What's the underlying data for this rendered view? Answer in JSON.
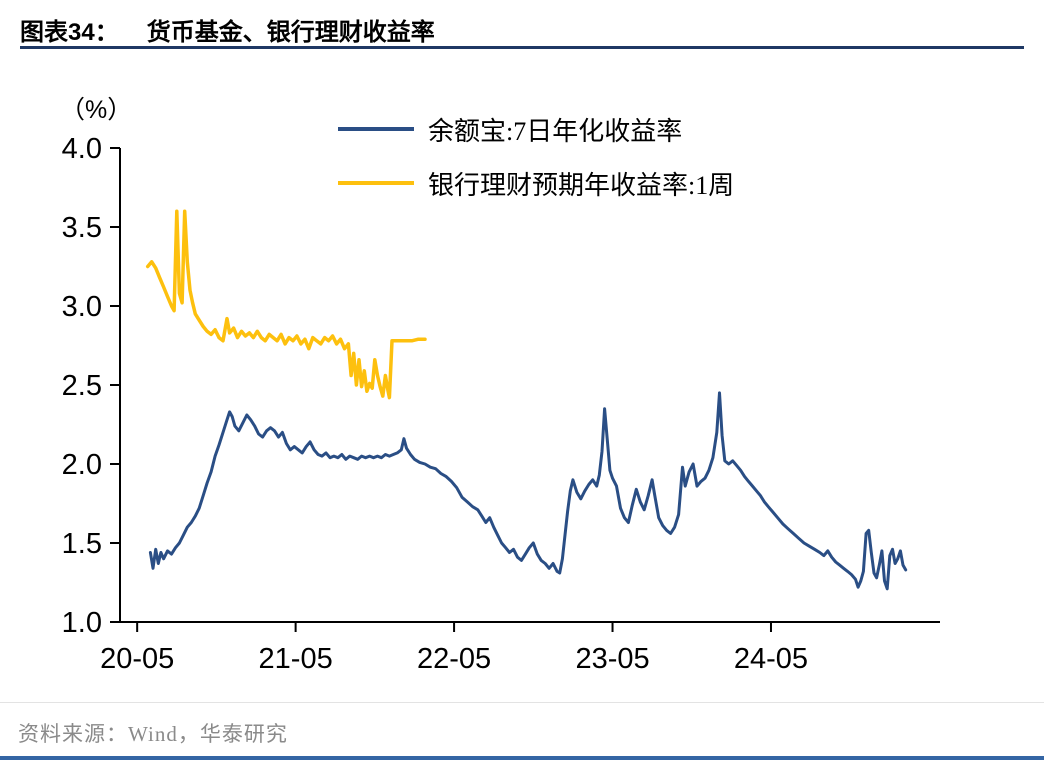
{
  "header": {
    "label": "图表34：",
    "title": "货币基金、银行理财收益率"
  },
  "footer": {
    "source": "资料来源：Wind，华泰研究"
  },
  "colors": {
    "title_rule": "#1f3864",
    "bottom_rule": "#3465a4",
    "axis": "#000000",
    "source_text": "#8a8a8a",
    "blue_series": "#2a4e85",
    "gold_series": "#fdc00e"
  },
  "chart_data": {
    "type": "line",
    "title": "货币基金、银行理财收益率",
    "unit_label": "（%）",
    "xlabel": "",
    "ylabel": "(%)",
    "grid": false,
    "legend_position": "top-center",
    "ylim": [
      1.0,
      4.0
    ],
    "yticks": [
      1.0,
      1.5,
      2.0,
      2.5,
      3.0,
      3.5,
      4.0
    ],
    "ytick_labels": [
      "1.0",
      "1.5",
      "2.0",
      "2.5",
      "3.0",
      "3.5",
      "4.0"
    ],
    "x_unit": "months since 2020-05",
    "xlim": [
      -1.3,
      60.8
    ],
    "xticks": [
      0,
      12,
      24,
      36,
      48
    ],
    "xtick_labels": [
      "20-05",
      "21-05",
      "22-05",
      "23-05",
      "24-05"
    ],
    "series": [
      {
        "name": "余额宝:7日年化收益率",
        "color": "#2a4e85",
        "points": [
          [
            1.0,
            1.44
          ],
          [
            1.2,
            1.34
          ],
          [
            1.4,
            1.46
          ],
          [
            1.6,
            1.37
          ],
          [
            1.8,
            1.44
          ],
          [
            2.0,
            1.4
          ],
          [
            2.3,
            1.45
          ],
          [
            2.6,
            1.43
          ],
          [
            2.9,
            1.47
          ],
          [
            3.2,
            1.5
          ],
          [
            3.5,
            1.55
          ],
          [
            3.8,
            1.6
          ],
          [
            4.1,
            1.63
          ],
          [
            4.4,
            1.67
          ],
          [
            4.7,
            1.72
          ],
          [
            5.0,
            1.8
          ],
          [
            5.3,
            1.88
          ],
          [
            5.6,
            1.95
          ],
          [
            5.9,
            2.05
          ],
          [
            6.2,
            2.12
          ],
          [
            6.5,
            2.2
          ],
          [
            6.8,
            2.28
          ],
          [
            7.0,
            2.33
          ],
          [
            7.2,
            2.3
          ],
          [
            7.4,
            2.24
          ],
          [
            7.7,
            2.21
          ],
          [
            8.0,
            2.26
          ],
          [
            8.3,
            2.31
          ],
          [
            8.6,
            2.28
          ],
          [
            8.9,
            2.24
          ],
          [
            9.2,
            2.19
          ],
          [
            9.5,
            2.17
          ],
          [
            9.8,
            2.21
          ],
          [
            10.1,
            2.23
          ],
          [
            10.4,
            2.21
          ],
          [
            10.7,
            2.17
          ],
          [
            11.0,
            2.2
          ],
          [
            11.3,
            2.13
          ],
          [
            11.6,
            2.09
          ],
          [
            11.9,
            2.11
          ],
          [
            12.2,
            2.09
          ],
          [
            12.5,
            2.07
          ],
          [
            12.8,
            2.11
          ],
          [
            13.1,
            2.14
          ],
          [
            13.4,
            2.09
          ],
          [
            13.7,
            2.06
          ],
          [
            14.0,
            2.05
          ],
          [
            14.3,
            2.07
          ],
          [
            14.6,
            2.04
          ],
          [
            14.9,
            2.05
          ],
          [
            15.2,
            2.04
          ],
          [
            15.5,
            2.06
          ],
          [
            15.8,
            2.03
          ],
          [
            16.1,
            2.05
          ],
          [
            16.4,
            2.04
          ],
          [
            16.7,
            2.03
          ],
          [
            17.0,
            2.05
          ],
          [
            17.3,
            2.04
          ],
          [
            17.6,
            2.05
          ],
          [
            17.9,
            2.04
          ],
          [
            18.2,
            2.05
          ],
          [
            18.5,
            2.04
          ],
          [
            18.8,
            2.06
          ],
          [
            19.1,
            2.05
          ],
          [
            19.4,
            2.06
          ],
          [
            19.7,
            2.07
          ],
          [
            20.0,
            2.09
          ],
          [
            20.2,
            2.16
          ],
          [
            20.4,
            2.1
          ],
          [
            20.7,
            2.06
          ],
          [
            21.0,
            2.03
          ],
          [
            21.4,
            2.01
          ],
          [
            21.8,
            2.0
          ],
          [
            22.2,
            1.98
          ],
          [
            22.6,
            1.97
          ],
          [
            23.0,
            1.94
          ],
          [
            23.4,
            1.92
          ],
          [
            23.8,
            1.89
          ],
          [
            24.2,
            1.85
          ],
          [
            24.6,
            1.79
          ],
          [
            25.0,
            1.76
          ],
          [
            25.4,
            1.73
          ],
          [
            25.8,
            1.71
          ],
          [
            26.1,
            1.67
          ],
          [
            26.4,
            1.63
          ],
          [
            26.7,
            1.66
          ],
          [
            27.0,
            1.6
          ],
          [
            27.3,
            1.55
          ],
          [
            27.6,
            1.5
          ],
          [
            27.9,
            1.47
          ],
          [
            28.2,
            1.44
          ],
          [
            28.5,
            1.46
          ],
          [
            28.8,
            1.41
          ],
          [
            29.1,
            1.39
          ],
          [
            29.4,
            1.43
          ],
          [
            29.7,
            1.47
          ],
          [
            30.0,
            1.5
          ],
          [
            30.3,
            1.43
          ],
          [
            30.6,
            1.39
          ],
          [
            30.9,
            1.37
          ],
          [
            31.2,
            1.34
          ],
          [
            31.5,
            1.37
          ],
          [
            31.8,
            1.32
          ],
          [
            32.0,
            1.31
          ],
          [
            32.2,
            1.4
          ],
          [
            32.4,
            1.55
          ],
          [
            32.6,
            1.7
          ],
          [
            32.8,
            1.83
          ],
          [
            33.0,
            1.9
          ],
          [
            33.3,
            1.82
          ],
          [
            33.6,
            1.78
          ],
          [
            33.9,
            1.83
          ],
          [
            34.2,
            1.87
          ],
          [
            34.5,
            1.9
          ],
          [
            34.8,
            1.86
          ],
          [
            35.0,
            1.93
          ],
          [
            35.2,
            2.08
          ],
          [
            35.4,
            2.35
          ],
          [
            35.6,
            2.16
          ],
          [
            35.8,
            1.96
          ],
          [
            36.0,
            1.91
          ],
          [
            36.3,
            1.86
          ],
          [
            36.6,
            1.72
          ],
          [
            36.9,
            1.66
          ],
          [
            37.2,
            1.63
          ],
          [
            37.5,
            1.74
          ],
          [
            37.8,
            1.84
          ],
          [
            38.1,
            1.76
          ],
          [
            38.4,
            1.71
          ],
          [
            38.7,
            1.8
          ],
          [
            39.0,
            1.9
          ],
          [
            39.2,
            1.8
          ],
          [
            39.5,
            1.66
          ],
          [
            39.8,
            1.61
          ],
          [
            40.1,
            1.58
          ],
          [
            40.4,
            1.56
          ],
          [
            40.7,
            1.6
          ],
          [
            41.0,
            1.68
          ],
          [
            41.3,
            1.98
          ],
          [
            41.5,
            1.86
          ],
          [
            41.8,
            1.95
          ],
          [
            42.1,
            2.0
          ],
          [
            42.4,
            1.86
          ],
          [
            42.7,
            1.89
          ],
          [
            43.0,
            1.91
          ],
          [
            43.3,
            1.96
          ],
          [
            43.6,
            2.04
          ],
          [
            43.9,
            2.2
          ],
          [
            44.1,
            2.45
          ],
          [
            44.3,
            2.18
          ],
          [
            44.5,
            2.02
          ],
          [
            44.8,
            2.0
          ],
          [
            45.1,
            2.02
          ],
          [
            45.4,
            1.99
          ],
          [
            45.7,
            1.96
          ],
          [
            46.0,
            1.92
          ],
          [
            46.3,
            1.89
          ],
          [
            46.6,
            1.86
          ],
          [
            46.9,
            1.83
          ],
          [
            47.2,
            1.8
          ],
          [
            47.5,
            1.76
          ],
          [
            47.8,
            1.73
          ],
          [
            48.1,
            1.7
          ],
          [
            48.5,
            1.66
          ],
          [
            48.9,
            1.62
          ],
          [
            49.3,
            1.59
          ],
          [
            49.7,
            1.56
          ],
          [
            50.1,
            1.53
          ],
          [
            50.5,
            1.5
          ],
          [
            50.9,
            1.48
          ],
          [
            51.3,
            1.46
          ],
          [
            51.7,
            1.44
          ],
          [
            52.0,
            1.42
          ],
          [
            52.3,
            1.45
          ],
          [
            52.6,
            1.41
          ],
          [
            52.9,
            1.38
          ],
          [
            53.2,
            1.36
          ],
          [
            53.5,
            1.34
          ],
          [
            53.8,
            1.32
          ],
          [
            54.1,
            1.3
          ],
          [
            54.4,
            1.27
          ],
          [
            54.6,
            1.22
          ],
          [
            54.8,
            1.26
          ],
          [
            55.0,
            1.32
          ],
          [
            55.2,
            1.56
          ],
          [
            55.4,
            1.58
          ],
          [
            55.6,
            1.44
          ],
          [
            55.8,
            1.31
          ],
          [
            56.0,
            1.28
          ],
          [
            56.2,
            1.36
          ],
          [
            56.4,
            1.45
          ],
          [
            56.6,
            1.26
          ],
          [
            56.8,
            1.21
          ],
          [
            57.0,
            1.42
          ],
          [
            57.2,
            1.46
          ],
          [
            57.4,
            1.37
          ],
          [
            57.6,
            1.4
          ],
          [
            57.8,
            1.45
          ],
          [
            58.0,
            1.36
          ],
          [
            58.2,
            1.33
          ]
        ]
      },
      {
        "name": "银行理财预期年收益率:1周",
        "color": "#fdc00e",
        "points": [
          [
            0.8,
            3.25
          ],
          [
            1.1,
            3.28
          ],
          [
            1.4,
            3.24
          ],
          [
            1.7,
            3.18
          ],
          [
            2.0,
            3.12
          ],
          [
            2.3,
            3.06
          ],
          [
            2.6,
            3.0
          ],
          [
            2.8,
            2.97
          ],
          [
            3.0,
            3.6
          ],
          [
            3.2,
            3.08
          ],
          [
            3.4,
            3.02
          ],
          [
            3.6,
            3.6
          ],
          [
            3.8,
            3.28
          ],
          [
            4.0,
            3.1
          ],
          [
            4.2,
            3.02
          ],
          [
            4.4,
            2.95
          ],
          [
            4.7,
            2.91
          ],
          [
            5.0,
            2.87
          ],
          [
            5.3,
            2.84
          ],
          [
            5.6,
            2.82
          ],
          [
            5.9,
            2.85
          ],
          [
            6.2,
            2.8
          ],
          [
            6.5,
            2.78
          ],
          [
            6.8,
            2.92
          ],
          [
            7.0,
            2.83
          ],
          [
            7.3,
            2.86
          ],
          [
            7.6,
            2.8
          ],
          [
            7.9,
            2.84
          ],
          [
            8.2,
            2.81
          ],
          [
            8.5,
            2.83
          ],
          [
            8.8,
            2.8
          ],
          [
            9.1,
            2.84
          ],
          [
            9.4,
            2.8
          ],
          [
            9.7,
            2.78
          ],
          [
            10.0,
            2.82
          ],
          [
            10.3,
            2.8
          ],
          [
            10.6,
            2.78
          ],
          [
            10.9,
            2.82
          ],
          [
            11.2,
            2.76
          ],
          [
            11.5,
            2.8
          ],
          [
            11.8,
            2.78
          ],
          [
            12.1,
            2.81
          ],
          [
            12.4,
            2.76
          ],
          [
            12.7,
            2.79
          ],
          [
            13.0,
            2.73
          ],
          [
            13.3,
            2.8
          ],
          [
            13.6,
            2.78
          ],
          [
            13.9,
            2.76
          ],
          [
            14.2,
            2.8
          ],
          [
            14.5,
            2.78
          ],
          [
            14.8,
            2.81
          ],
          [
            15.1,
            2.76
          ],
          [
            15.4,
            2.79
          ],
          [
            15.7,
            2.73
          ],
          [
            16.0,
            2.76
          ],
          [
            16.2,
            2.56
          ],
          [
            16.4,
            2.7
          ],
          [
            16.6,
            2.5
          ],
          [
            16.8,
            2.66
          ],
          [
            17.0,
            2.49
          ],
          [
            17.2,
            2.59
          ],
          [
            17.4,
            2.46
          ],
          [
            17.6,
            2.51
          ],
          [
            17.8,
            2.48
          ],
          [
            18.0,
            2.66
          ],
          [
            18.2,
            2.56
          ],
          [
            18.4,
            2.49
          ],
          [
            18.6,
            2.43
          ],
          [
            18.8,
            2.56
          ],
          [
            19.0,
            2.46
          ],
          [
            19.1,
            2.42
          ],
          [
            19.3,
            2.78
          ],
          [
            19.8,
            2.78
          ],
          [
            20.3,
            2.78
          ],
          [
            20.8,
            2.78
          ],
          [
            21.3,
            2.79
          ],
          [
            21.8,
            2.79
          ]
        ]
      }
    ]
  }
}
